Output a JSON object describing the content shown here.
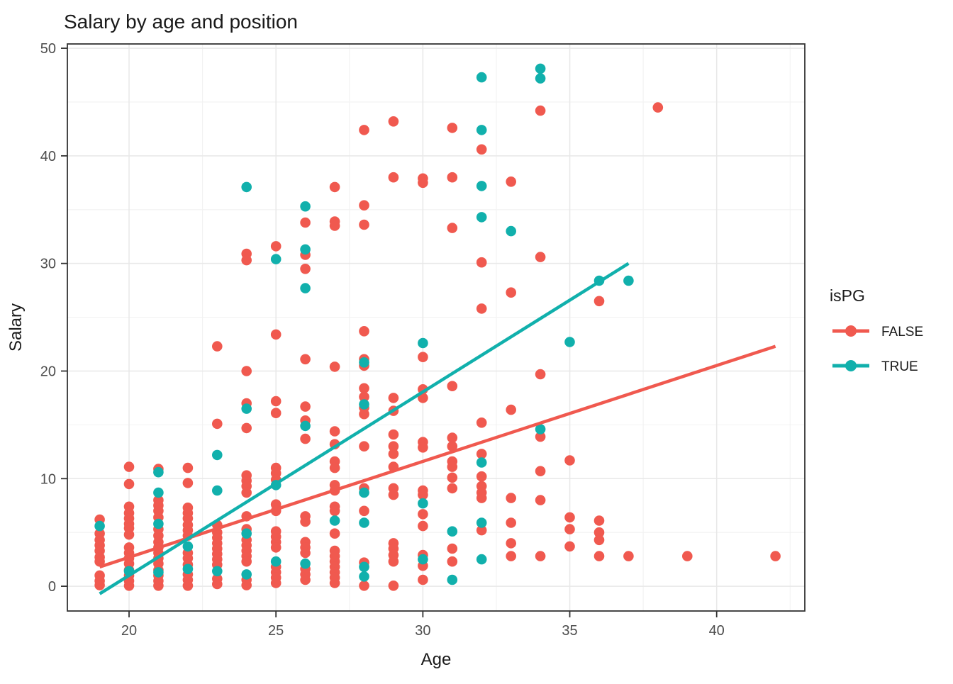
{
  "chart_data": {
    "type": "scatter",
    "title": "Salary by age and position",
    "xlabel": "Age",
    "ylabel": "Salary",
    "xlim": [
      17.9,
      43.0
    ],
    "ylim": [
      -2.3,
      50.4
    ],
    "x_ticks": [
      20,
      25,
      30,
      35,
      40
    ],
    "y_ticks": [
      0,
      10,
      20,
      30,
      40,
      50
    ],
    "x_minor_ticks": [
      22.5,
      27.5,
      32.5,
      37.5,
      42.5
    ],
    "y_minor_ticks": [
      5,
      15,
      25,
      35,
      45
    ],
    "grid": true,
    "legend": {
      "title": "isPG",
      "position": "right",
      "entries": [
        {
          "label": "FALSE",
          "color": "#F0594F"
        },
        {
          "label": "TRUE",
          "color": "#11B0AC"
        }
      ]
    },
    "series": [
      {
        "name": "FALSE",
        "color": "#F0594F",
        "points": [
          [
            19,
            6.2
          ],
          [
            19,
            4.9
          ],
          [
            19,
            4.3
          ],
          [
            19,
            3.8
          ],
          [
            19,
            3.3
          ],
          [
            19,
            2.7
          ],
          [
            19,
            2.3
          ],
          [
            19,
            1.0
          ],
          [
            19,
            0.5
          ],
          [
            19,
            0.1
          ],
          [
            20,
            11.1
          ],
          [
            20,
            9.5
          ],
          [
            20,
            7.4
          ],
          [
            20,
            6.8
          ],
          [
            20,
            6.3
          ],
          [
            20,
            5.8
          ],
          [
            20,
            5.4
          ],
          [
            20,
            4.8
          ],
          [
            20,
            3.6
          ],
          [
            20,
            3.1
          ],
          [
            20,
            2.6
          ],
          [
            20,
            2.1
          ],
          [
            20,
            1.5
          ],
          [
            20,
            1.0
          ],
          [
            20,
            0.5
          ],
          [
            20,
            0.05
          ],
          [
            21,
            10.9
          ],
          [
            21,
            8.0
          ],
          [
            21,
            7.5
          ],
          [
            21,
            7.0
          ],
          [
            21,
            6.4
          ],
          [
            21,
            5.3
          ],
          [
            21,
            4.7
          ],
          [
            21,
            4.1
          ],
          [
            21,
            3.6
          ],
          [
            21,
            3.1
          ],
          [
            21,
            2.6
          ],
          [
            21,
            2.1
          ],
          [
            21,
            1.5
          ],
          [
            21,
            1.0
          ],
          [
            21,
            0.5
          ],
          [
            21,
            0.05
          ],
          [
            22,
            11.0
          ],
          [
            22,
            9.6
          ],
          [
            22,
            7.3
          ],
          [
            22,
            6.8
          ],
          [
            22,
            6.3
          ],
          [
            22,
            5.7
          ],
          [
            22,
            5.2
          ],
          [
            22,
            4.7
          ],
          [
            22,
            3.1
          ],
          [
            22,
            2.6
          ],
          [
            22,
            2.0
          ],
          [
            22,
            1.1
          ],
          [
            22,
            0.6
          ],
          [
            22,
            0.05
          ],
          [
            23,
            22.3
          ],
          [
            23,
            15.1
          ],
          [
            23,
            5.7
          ],
          [
            23,
            5.0
          ],
          [
            23,
            4.5
          ],
          [
            23,
            4.0
          ],
          [
            23,
            3.5
          ],
          [
            23,
            3.0
          ],
          [
            23,
            2.5
          ],
          [
            23,
            2.0
          ],
          [
            23,
            0.7
          ],
          [
            23,
            0.2
          ],
          [
            24,
            30.9
          ],
          [
            24,
            30.3
          ],
          [
            24,
            20.0
          ],
          [
            24,
            17.0
          ],
          [
            24,
            14.7
          ],
          [
            24,
            10.3
          ],
          [
            24,
            9.8
          ],
          [
            24,
            9.3
          ],
          [
            24,
            8.7
          ],
          [
            24,
            6.5
          ],
          [
            24,
            5.3
          ],
          [
            24,
            4.3
          ],
          [
            24,
            3.8
          ],
          [
            24,
            3.3
          ],
          [
            24,
            2.8
          ],
          [
            24,
            2.3
          ],
          [
            24,
            0.6
          ],
          [
            24,
            0.1
          ],
          [
            25,
            31.6
          ],
          [
            25,
            23.4
          ],
          [
            25,
            17.2
          ],
          [
            25,
            16.1
          ],
          [
            25,
            11.0
          ],
          [
            25,
            10.5
          ],
          [
            25,
            9.9
          ],
          [
            25,
            7.6
          ],
          [
            25,
            7.0
          ],
          [
            25,
            5.1
          ],
          [
            25,
            4.6
          ],
          [
            25,
            4.1
          ],
          [
            25,
            3.6
          ],
          [
            25,
            1.8
          ],
          [
            25,
            1.3
          ],
          [
            25,
            0.8
          ],
          [
            25,
            0.3
          ],
          [
            26,
            33.8
          ],
          [
            26,
            30.8
          ],
          [
            26,
            29.5
          ],
          [
            26,
            21.1
          ],
          [
            26,
            16.7
          ],
          [
            26,
            15.4
          ],
          [
            26,
            13.7
          ],
          [
            26,
            6.5
          ],
          [
            26,
            6.0
          ],
          [
            26,
            4.1
          ],
          [
            26,
            3.6
          ],
          [
            26,
            3.1
          ],
          [
            26,
            1.6
          ],
          [
            26,
            1.1
          ],
          [
            26,
            0.6
          ],
          [
            27,
            37.1
          ],
          [
            27,
            33.9
          ],
          [
            27,
            33.5
          ],
          [
            27,
            20.4
          ],
          [
            27,
            14.4
          ],
          [
            27,
            13.2
          ],
          [
            27,
            11.6
          ],
          [
            27,
            11.0
          ],
          [
            27,
            9.4
          ],
          [
            27,
            8.9
          ],
          [
            27,
            7.4
          ],
          [
            27,
            7.0
          ],
          [
            27,
            4.9
          ],
          [
            27,
            3.3
          ],
          [
            27,
            2.8
          ],
          [
            27,
            2.3
          ],
          [
            27,
            1.8
          ],
          [
            27,
            1.3
          ],
          [
            27,
            0.8
          ],
          [
            27,
            0.3
          ],
          [
            28,
            42.4
          ],
          [
            28,
            35.4
          ],
          [
            28,
            33.6
          ],
          [
            28,
            23.7
          ],
          [
            28,
            21.1
          ],
          [
            28,
            20.5
          ],
          [
            28,
            18.4
          ],
          [
            28,
            17.6
          ],
          [
            28,
            16.6
          ],
          [
            28,
            16.0
          ],
          [
            28,
            13.0
          ],
          [
            28,
            9.1
          ],
          [
            28,
            7.0
          ],
          [
            28,
            2.2
          ],
          [
            28,
            0.05
          ],
          [
            29,
            43.2
          ],
          [
            29,
            38.0
          ],
          [
            29,
            17.5
          ],
          [
            29,
            16.3
          ],
          [
            29,
            14.1
          ],
          [
            29,
            13.0
          ],
          [
            29,
            12.3
          ],
          [
            29,
            11.1
          ],
          [
            29,
            9.1
          ],
          [
            29,
            8.5
          ],
          [
            29,
            4.0
          ],
          [
            29,
            3.5
          ],
          [
            29,
            2.9
          ],
          [
            29,
            2.3
          ],
          [
            29,
            0.05
          ],
          [
            30,
            37.9
          ],
          [
            30,
            37.5
          ],
          [
            30,
            21.3
          ],
          [
            30,
            18.3
          ],
          [
            30,
            17.5
          ],
          [
            30,
            13.4
          ],
          [
            30,
            12.9
          ],
          [
            30,
            8.9
          ],
          [
            30,
            8.5
          ],
          [
            30,
            6.7
          ],
          [
            30,
            5.6
          ],
          [
            30,
            2.9
          ],
          [
            30,
            1.9
          ],
          [
            30,
            0.6
          ],
          [
            31,
            42.6
          ],
          [
            31,
            38.0
          ],
          [
            31,
            33.3
          ],
          [
            31,
            18.6
          ],
          [
            31,
            13.8
          ],
          [
            31,
            13.0
          ],
          [
            31,
            11.6
          ],
          [
            31,
            11.1
          ],
          [
            31,
            10.1
          ],
          [
            31,
            9.1
          ],
          [
            31,
            3.5
          ],
          [
            31,
            2.3
          ],
          [
            32,
            40.6
          ],
          [
            32,
            30.1
          ],
          [
            32,
            25.8
          ],
          [
            32,
            15.2
          ],
          [
            32,
            12.3
          ],
          [
            32,
            10.2
          ],
          [
            32,
            9.3
          ],
          [
            32,
            8.7
          ],
          [
            32,
            8.2
          ],
          [
            32,
            5.2
          ],
          [
            33,
            37.6
          ],
          [
            33,
            27.3
          ],
          [
            33,
            16.4
          ],
          [
            33,
            8.2
          ],
          [
            33,
            5.9
          ],
          [
            33,
            4.0
          ],
          [
            33,
            2.8
          ],
          [
            34,
            44.2
          ],
          [
            34,
            30.6
          ],
          [
            34,
            19.7
          ],
          [
            34,
            13.9
          ],
          [
            34,
            10.7
          ],
          [
            34,
            8.0
          ],
          [
            34,
            2.8
          ],
          [
            35,
            11.7
          ],
          [
            35,
            6.4
          ],
          [
            35,
            5.3
          ],
          [
            35,
            3.7
          ],
          [
            36,
            26.5
          ],
          [
            36,
            6.1
          ],
          [
            36,
            5.0
          ],
          [
            36,
            4.3
          ],
          [
            36,
            2.8
          ],
          [
            37,
            2.8
          ],
          [
            38,
            44.5
          ],
          [
            39,
            2.8
          ],
          [
            42,
            2.8
          ]
        ]
      },
      {
        "name": "TRUE",
        "color": "#11B0AC",
        "points": [
          [
            19,
            5.6
          ],
          [
            20,
            1.4
          ],
          [
            21,
            10.6
          ],
          [
            21,
            8.7
          ],
          [
            21,
            5.8
          ],
          [
            21,
            1.3
          ],
          [
            22,
            3.7
          ],
          [
            22,
            1.6
          ],
          [
            23,
            12.2
          ],
          [
            23,
            8.9
          ],
          [
            23,
            1.4
          ],
          [
            24,
            37.1
          ],
          [
            24,
            16.5
          ],
          [
            24,
            4.9
          ],
          [
            24,
            1.1
          ],
          [
            25,
            30.4
          ],
          [
            25,
            9.4
          ],
          [
            25,
            2.3
          ],
          [
            26,
            35.3
          ],
          [
            26,
            31.3
          ],
          [
            26,
            27.7
          ],
          [
            26,
            14.9
          ],
          [
            26,
            2.1
          ],
          [
            27,
            6.1
          ],
          [
            28,
            20.8
          ],
          [
            28,
            16.9
          ],
          [
            28,
            8.7
          ],
          [
            28,
            5.9
          ],
          [
            28,
            1.8
          ],
          [
            28,
            0.9
          ],
          [
            30,
            22.6
          ],
          [
            30,
            7.7
          ],
          [
            30,
            2.5
          ],
          [
            31,
            5.1
          ],
          [
            31,
            0.6
          ],
          [
            32,
            47.3
          ],
          [
            32,
            42.4
          ],
          [
            32,
            37.2
          ],
          [
            32,
            34.3
          ],
          [
            32,
            11.5
          ],
          [
            32,
            5.9
          ],
          [
            32,
            2.5
          ],
          [
            33,
            33.0
          ],
          [
            34,
            48.1
          ],
          [
            34,
            47.2
          ],
          [
            34,
            14.6
          ],
          [
            35,
            22.7
          ],
          [
            36,
            28.4
          ],
          [
            37,
            28.4
          ]
        ]
      }
    ],
    "trend_lines": [
      {
        "series": "FALSE",
        "color": "#F0594F",
        "x1": 19.0,
        "y1": 1.8,
        "x2": 42.0,
        "y2": 22.3
      },
      {
        "series": "TRUE",
        "color": "#11B0AC",
        "x1": 19.0,
        "y1": -0.7,
        "x2": 37.0,
        "y2": 30.0
      }
    ],
    "style": {
      "background": "#ffffff",
      "panel_border": "#333333",
      "grid_major": "#e8e8e8",
      "grid_minor": "#f2f2f2",
      "tick_color": "#333333",
      "point_radius": 7.3,
      "line_width": 4.5
    }
  }
}
